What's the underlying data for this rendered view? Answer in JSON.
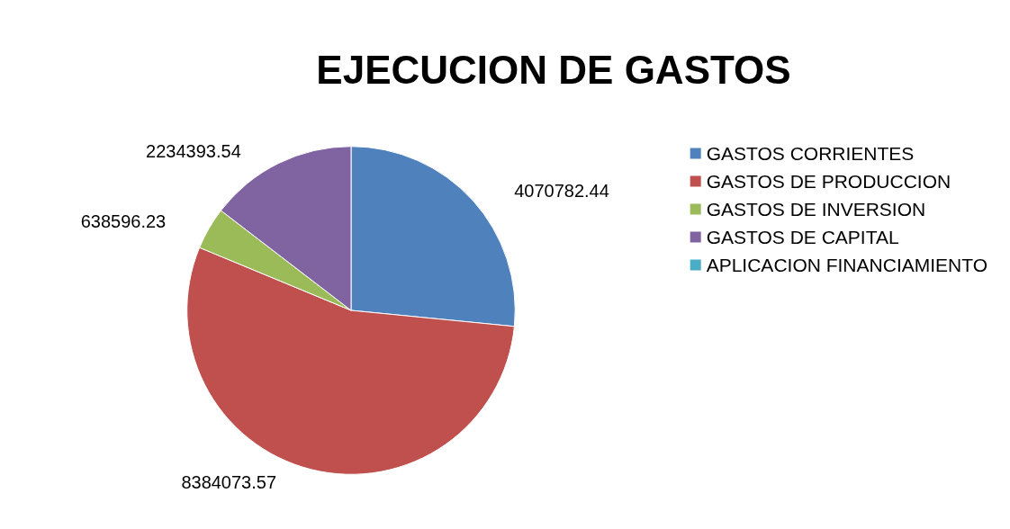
{
  "chart_data": {
    "type": "pie",
    "title": "EJECUCION DE GASTOS",
    "categories": [
      "GASTOS CORRIENTES",
      "GASTOS DE PRODUCCION",
      "GASTOS DE INVERSION",
      "GASTOS DE CAPITAL",
      "APLICACION FINANCIAMIENTO"
    ],
    "values": [
      4070782.44,
      8384073.57,
      638596.23,
      2234393.54,
      null
    ],
    "colors": [
      "#4f81bd",
      "#c0504d",
      "#9bbb59",
      "#8064a2",
      "#4bacc6"
    ],
    "data_labels": true,
    "legend": "right"
  }
}
